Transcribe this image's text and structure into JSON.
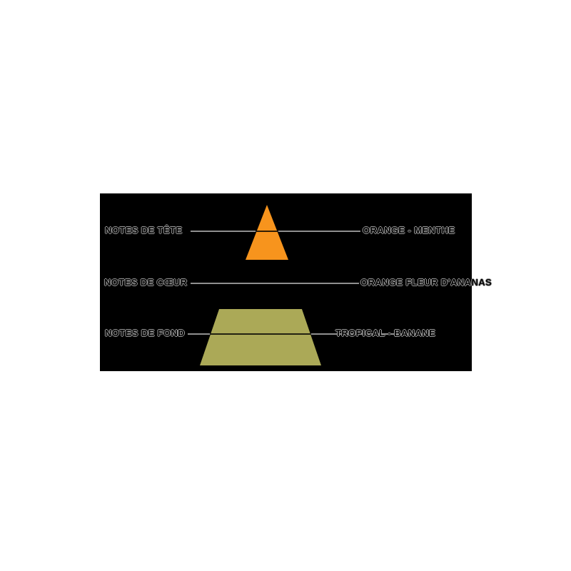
{
  "diagram": {
    "title": "pyramide-olfactive",
    "rows": [
      {
        "level": "NOTES DE TÊTE",
        "notes": "ORANGE - MENTHE"
      },
      {
        "level": "NOTES DE CŒUR",
        "notes": "ORANGE FLEUR D'ANANAS"
      },
      {
        "level": "NOTES DE FOND",
        "notes": "TROPICAL - BANANE"
      }
    ],
    "colors": {
      "top_layer": "#f7941d",
      "base_layer": "#aba957",
      "panel_background": "#000000",
      "leader_line": "#8f8f8f"
    }
  }
}
